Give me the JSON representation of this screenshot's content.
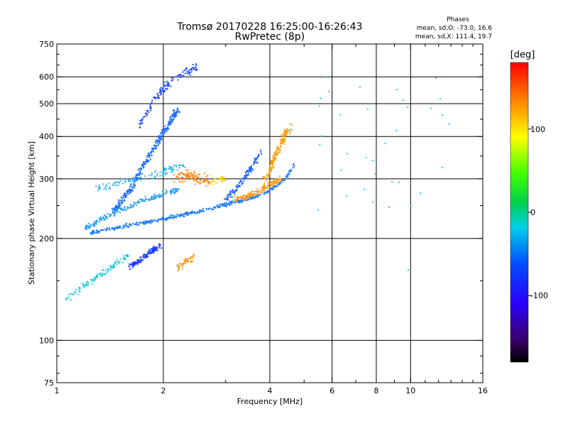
{
  "chart_data": {
    "type": "scatter",
    "title": "Tromsø 20170228 16:25:00-16:26:43",
    "subtitle": "RwPretec (8p)",
    "stats": {
      "heading": "Phases",
      "line_o": "mean, sd,O: -73.0, 16.6",
      "line_x": "mean, sd,X: 111.4, 19.7"
    },
    "xlabel": "Frequency [MHz]",
    "ylabel": "Stationary phase Virtual Height [km]",
    "x_scale": "log",
    "y_scale": "log",
    "xlim": [
      1,
      16
    ],
    "ylim": [
      75,
      750
    ],
    "x_ticks": [
      1,
      2,
      4,
      6,
      8,
      10,
      16
    ],
    "x_tick_labels": [
      "1",
      "2",
      "4",
      "6",
      "8",
      "10",
      "16"
    ],
    "x_minor_ticks": [
      3,
      5,
      7,
      9,
      11,
      12,
      13,
      14,
      15
    ],
    "x_gridlines": [
      2,
      4,
      6,
      8,
      10
    ],
    "y_ticks": [
      75,
      100,
      200,
      300,
      400,
      500,
      600,
      750
    ],
    "y_tick_labels": [
      "75",
      "100",
      "200",
      "300",
      "400",
      "500",
      "600",
      "750"
    ],
    "y_minor_ticks": [
      80,
      90,
      150,
      250,
      350,
      450,
      550,
      650,
      700
    ],
    "y_gridlines": [
      100,
      200,
      300,
      400,
      500,
      600
    ],
    "colorbar": {
      "label": "[deg]",
      "range": [
        -180,
        180
      ],
      "tick_values": [
        100,
        0,
        -100
      ],
      "tick_labels": [
        "100",
        "0",
        "-100"
      ]
    },
    "series": [
      {
        "x_range": [
          1.25,
          4.7
        ],
        "trace": [
          [
            1.25,
            208
          ],
          [
            1.5,
            216
          ],
          [
            2.0,
            228
          ],
          [
            2.6,
            242
          ],
          [
            3.3,
            258
          ],
          [
            3.9,
            272
          ],
          [
            4.4,
            298
          ],
          [
            4.7,
            330
          ]
        ],
        "color": "#1e7cff",
        "count": 420,
        "spread_h": 0.018,
        "spread_x": 0.012
      },
      {
        "x_range": [
          1.6,
          1.95
        ],
        "trace": [
          [
            1.6,
            165
          ],
          [
            1.75,
            175
          ],
          [
            1.95,
            190
          ]
        ],
        "color": "#1a3cff",
        "count": 130,
        "spread_h": 0.035,
        "spread_x": 0.03
      },
      {
        "x_range": [
          1.45,
          2.2
        ],
        "trace": [
          [
            1.45,
            240
          ],
          [
            1.65,
            290
          ],
          [
            1.85,
            360
          ],
          [
            2.05,
            430
          ],
          [
            2.2,
            480
          ]
        ],
        "color": "#1a6bff",
        "count": 320,
        "spread_h": 0.05,
        "spread_x": 0.03
      },
      {
        "x_range": [
          1.7,
          2.5
        ],
        "trace": [
          [
            1.7,
            430
          ],
          [
            1.9,
            520
          ],
          [
            2.1,
            580
          ],
          [
            2.3,
            620
          ],
          [
            2.5,
            640
          ]
        ],
        "color": "#1a4cff",
        "count": 130,
        "spread_h": 0.045,
        "spread_x": 0.03
      },
      {
        "x_range": [
          1.05,
          1.6
        ],
        "trace": [
          [
            1.05,
            132
          ],
          [
            1.2,
            145
          ],
          [
            1.4,
            162
          ],
          [
            1.6,
            180
          ]
        ],
        "color": "#22c8e0",
        "count": 110,
        "spread_h": 0.035,
        "spread_x": 0.02
      },
      {
        "x_range": [
          1.2,
          2.2
        ],
        "trace": [
          [
            1.2,
            215
          ],
          [
            1.5,
            242
          ],
          [
            1.8,
            262
          ],
          [
            2.2,
            278
          ]
        ],
        "color": "#2aa0f0",
        "count": 200,
        "spread_h": 0.03,
        "spread_x": 0.02
      },
      {
        "x_range": [
          1.3,
          2.3
        ],
        "trace": [
          [
            1.3,
            280
          ],
          [
            1.7,
            300
          ],
          [
            2.3,
            330
          ]
        ],
        "color": "#28b4f0",
        "count": 110,
        "spread_h": 0.04,
        "spread_x": 0.03
      },
      {
        "x_range": [
          2.2,
          2.7
        ],
        "trace": [
          [
            2.2,
            300
          ],
          [
            2.35,
            310
          ],
          [
            2.5,
            300
          ],
          [
            2.7,
            295
          ]
        ],
        "color": "#ff8a1e",
        "count": 110,
        "spread_h": 0.06,
        "spread_x": 0.04
      },
      {
        "x_range": [
          2.75,
          3.0
        ],
        "trace": [
          [
            2.75,
            295
          ],
          [
            2.9,
            300
          ],
          [
            3.0,
            298
          ]
        ],
        "color": "#ffd200",
        "count": 30,
        "spread_h": 0.04,
        "spread_x": 0.03
      },
      {
        "x_range": [
          3.2,
          4.3
        ],
        "trace": [
          [
            3.2,
            262
          ],
          [
            3.6,
            270
          ],
          [
            3.9,
            285
          ],
          [
            4.3,
            300
          ]
        ],
        "color": "#ff9a1a",
        "count": 150,
        "spread_h": 0.035,
        "spread_x": 0.02
      },
      {
        "x_range": [
          3.9,
          4.5
        ],
        "trace": [
          [
            3.9,
            300
          ],
          [
            4.1,
            340
          ],
          [
            4.3,
            380
          ],
          [
            4.5,
            420
          ]
        ],
        "color": "#ffa010",
        "count": 180,
        "spread_h": 0.06,
        "spread_x": 0.04
      },
      {
        "x_range": [
          3.0,
          3.8
        ],
        "trace": [
          [
            3.0,
            262
          ],
          [
            3.3,
            290
          ],
          [
            3.6,
            330
          ],
          [
            3.8,
            365
          ]
        ],
        "color": "#1a60ff",
        "count": 110,
        "spread_h": 0.04,
        "spread_x": 0.03
      },
      {
        "x_range": [
          2.2,
          2.45
        ],
        "trace": [
          [
            2.2,
            165
          ],
          [
            2.3,
            170
          ],
          [
            2.45,
            178
          ]
        ],
        "color": "#ff9a1a",
        "count": 45,
        "spread_h": 0.04,
        "spread_x": 0.02
      },
      {
        "x_range": [
          4.7,
          13.0
        ],
        "trace": [
          [
            4.7,
            400
          ],
          [
            13.0,
            400
          ]
        ],
        "color": "#22c8e0",
        "count": 36,
        "spread_h": 1.1,
        "spread_x": 0.1
      }
    ]
  }
}
